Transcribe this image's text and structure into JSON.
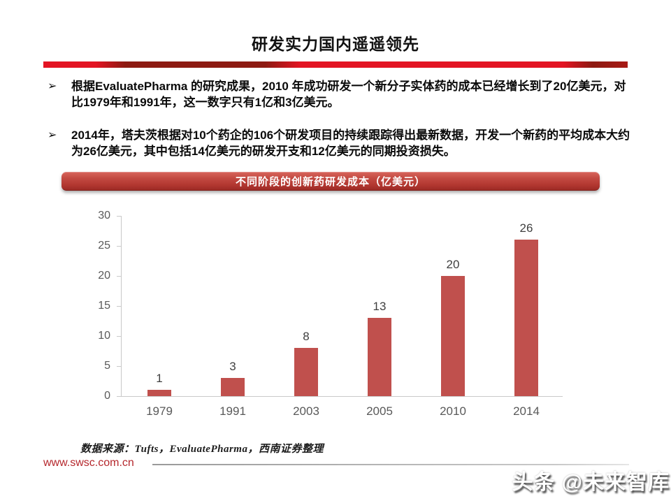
{
  "header": {
    "title": "研发实力国内遥遥领先"
  },
  "bullets": [
    {
      "marker": "➢",
      "text": "根据EvaluatePharma 的研究成果，2010 年成功研发一个新分子实体药的成本已经增长到了20亿美元，对比1979年和1991年，这一数字只有1亿和3亿美元。"
    },
    {
      "marker": "➢",
      "text": "2014年，塔夫茨根据对10个药企的106个研发项目的持续跟踪得出最新数据，开发一个新药的平均成本大约为26亿美元，其中包括14亿美元的研发开支和12亿美元的同期投资损失。"
    }
  ],
  "chart_banner": {
    "title": "不同阶段的创新药研发成本（亿美元）"
  },
  "chart_data": {
    "type": "bar",
    "title": "不同阶段的创新药研发成本（亿美元）",
    "categories": [
      "1979",
      "1991",
      "2003",
      "2005",
      "2010",
      "2014"
    ],
    "values": [
      1,
      3,
      8,
      13,
      20,
      26
    ],
    "xlabel": "",
    "ylabel": "",
    "ylim": [
      0,
      30
    ],
    "yticks": [
      0,
      5,
      10,
      15,
      20,
      25,
      30
    ],
    "grid": false,
    "legend": "none",
    "data_labels": true,
    "bar_color": "#c0504d"
  },
  "source_note": "数据来源：Tufts，EvaluatePharma，西南证券整理",
  "footer": {
    "url": "www.swsc.com.cn"
  },
  "watermark": "头条 @未来智库",
  "colors": {
    "accent_red": "#e31423",
    "dark_red": "#8d1a12",
    "banner_red": "#b23730",
    "bar_red": "#c0504d",
    "axis_gray": "#c9c9c9",
    "label_gray": "#595959",
    "footer_url_red": "#b5282d"
  }
}
